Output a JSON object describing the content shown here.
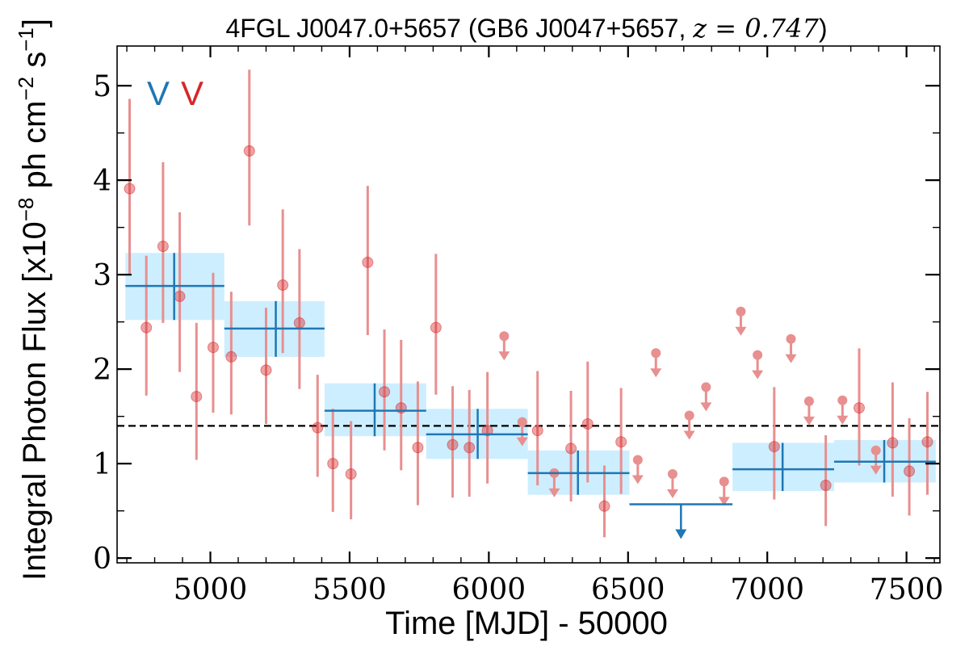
{
  "chart_data": {
    "type": "scatter",
    "title_prefix": "4FGL J0047.0+5657 (GB6 J0047+5657, ",
    "title_math": "z = 0.747",
    "title_suffix": ")",
    "xlabel": "Time [MJD] - 50000",
    "ylabel_prefix": "Integral Photon Flux [x10",
    "ylabel_exp1": "−8",
    "ylabel_mid": " ph cm",
    "ylabel_exp2": "−2",
    "ylabel_mid2": " s",
    "ylabel_exp3": "−1",
    "ylabel_suffix": "]",
    "xlim": [
      4665,
      7620
    ],
    "ylim": [
      -0.05,
      5.42
    ],
    "x_ticks": [
      5000,
      5500,
      6000,
      6500,
      7000,
      7500
    ],
    "y_ticks": [
      0,
      1,
      2,
      3,
      4,
      5
    ],
    "reference_line": 1.4,
    "legend_labels": [
      "V",
      "V"
    ],
    "colors": {
      "binned": "#1f77b4",
      "fine": "#d62728",
      "fine_alpha": "#e88f8f",
      "band": "#cdeeff"
    },
    "binned_series": [
      {
        "x0": 4695,
        "x1": 5050,
        "xc": 4870,
        "y": 2.88,
        "ylo": 2.52,
        "yhi": 3.23
      },
      {
        "x0": 5050,
        "x1": 5410,
        "xc": 5235,
        "y": 2.43,
        "ylo": 2.13,
        "yhi": 2.72
      },
      {
        "x0": 5410,
        "x1": 5775,
        "xc": 5590,
        "y": 1.56,
        "ylo": 1.29,
        "yhi": 1.85
      },
      {
        "x0": 5775,
        "x1": 6140,
        "xc": 5960,
        "y": 1.31,
        "ylo": 1.05,
        "yhi": 1.58
      },
      {
        "x0": 6140,
        "x1": 6505,
        "xc": 6320,
        "y": 0.9,
        "ylo": 0.67,
        "yhi": 1.14
      },
      {
        "x0": 6505,
        "x1": 6875,
        "xc": 6690,
        "y": 0.57,
        "upper_limit": true
      },
      {
        "x0": 6875,
        "x1": 7240,
        "xc": 7055,
        "y": 0.94,
        "ylo": 0.71,
        "yhi": 1.22
      },
      {
        "x0": 7240,
        "x1": 7605,
        "xc": 7420,
        "y": 1.02,
        "ylo": 0.8,
        "yhi": 1.25
      }
    ],
    "fine_series": [
      {
        "x": 4710,
        "y": 3.91,
        "ylo": 3.0,
        "yhi": 4.86
      },
      {
        "x": 4770,
        "y": 2.44,
        "ylo": 1.72,
        "yhi": 3.2
      },
      {
        "x": 4830,
        "y": 3.3,
        "ylo": 2.49,
        "yhi": 4.19
      },
      {
        "x": 4890,
        "y": 2.77,
        "ylo": 1.97,
        "yhi": 3.66
      },
      {
        "x": 4950,
        "y": 1.71,
        "ylo": 1.04,
        "yhi": 2.49
      },
      {
        "x": 5010,
        "y": 2.23,
        "ylo": 1.54,
        "yhi": 3.02
      },
      {
        "x": 5075,
        "y": 2.13,
        "ylo": 1.52,
        "yhi": 2.82
      },
      {
        "x": 5140,
        "y": 4.31,
        "ylo": 3.52,
        "yhi": 5.17
      },
      {
        "x": 5200,
        "y": 1.99,
        "ylo": 1.42,
        "yhi": 2.65
      },
      {
        "x": 5260,
        "y": 2.89,
        "ylo": 2.17,
        "yhi": 3.69
      },
      {
        "x": 5320,
        "y": 2.49,
        "ylo": 1.79,
        "yhi": 3.27
      },
      {
        "x": 5385,
        "y": 1.38,
        "ylo": 0.86,
        "yhi": 1.94
      },
      {
        "x": 5440,
        "y": 1.0,
        "ylo": 0.49,
        "yhi": 1.58
      },
      {
        "x": 5505,
        "y": 0.89,
        "ylo": 0.41,
        "yhi": 1.45
      },
      {
        "x": 5565,
        "y": 3.13,
        "ylo": 2.36,
        "yhi": 3.94
      },
      {
        "x": 5625,
        "y": 1.76,
        "ylo": 1.14,
        "yhi": 2.42
      },
      {
        "x": 5685,
        "y": 1.59,
        "ylo": 0.93,
        "yhi": 2.31
      },
      {
        "x": 5745,
        "y": 1.17,
        "ylo": 0.56,
        "yhi": 1.87
      },
      {
        "x": 5810,
        "y": 2.44,
        "ylo": 1.73,
        "yhi": 3.22
      },
      {
        "x": 5870,
        "y": 1.2,
        "ylo": 0.64,
        "yhi": 1.82
      },
      {
        "x": 5930,
        "y": 1.17,
        "ylo": 0.65,
        "yhi": 1.78
      },
      {
        "x": 5995,
        "y": 1.35,
        "ylo": 0.79,
        "yhi": 1.97
      },
      {
        "x": 6055,
        "y": 2.35,
        "upper_limit": true
      },
      {
        "x": 6120,
        "y": 1.44,
        "upper_limit": true
      },
      {
        "x": 6175,
        "y": 1.35,
        "ylo": 0.77,
        "yhi": 1.98
      },
      {
        "x": 6235,
        "y": 0.9,
        "upper_limit": true
      },
      {
        "x": 6295,
        "y": 1.16,
        "ylo": 0.6,
        "yhi": 1.77
      },
      {
        "x": 6355,
        "y": 1.42,
        "ylo": 0.8,
        "yhi": 2.08
      },
      {
        "x": 6415,
        "y": 0.55,
        "ylo": 0.22,
        "yhi": 0.98
      },
      {
        "x": 6475,
        "y": 1.23,
        "ylo": 0.68,
        "yhi": 1.8
      },
      {
        "x": 6535,
        "y": 1.04,
        "upper_limit": true
      },
      {
        "x": 6600,
        "y": 2.17,
        "upper_limit": true
      },
      {
        "x": 6660,
        "y": 0.89,
        "upper_limit": true
      },
      {
        "x": 6720,
        "y": 1.51,
        "upper_limit": true
      },
      {
        "x": 6780,
        "y": 1.81,
        "upper_limit": true
      },
      {
        "x": 6845,
        "y": 0.81,
        "upper_limit": true
      },
      {
        "x": 6905,
        "y": 2.61,
        "upper_limit": true
      },
      {
        "x": 6965,
        "y": 2.15,
        "upper_limit": true
      },
      {
        "x": 7025,
        "y": 1.18,
        "ylo": 0.62,
        "yhi": 1.81
      },
      {
        "x": 7085,
        "y": 2.32,
        "upper_limit": true
      },
      {
        "x": 7150,
        "y": 1.66,
        "upper_limit": true
      },
      {
        "x": 7210,
        "y": 0.77,
        "ylo": 0.34,
        "yhi": 1.3
      },
      {
        "x": 7270,
        "y": 1.67,
        "upper_limit": true
      },
      {
        "x": 7330,
        "y": 1.59,
        "ylo": 0.98,
        "yhi": 2.22
      },
      {
        "x": 7390,
        "y": 1.14,
        "upper_limit": true
      },
      {
        "x": 7450,
        "y": 1.22,
        "ylo": 0.65,
        "yhi": 1.86
      },
      {
        "x": 7510,
        "y": 0.92,
        "ylo": 0.45,
        "yhi": 1.48
      },
      {
        "x": 7575,
        "y": 1.23,
        "ylo": 0.67,
        "yhi": 1.76
      }
    ]
  }
}
